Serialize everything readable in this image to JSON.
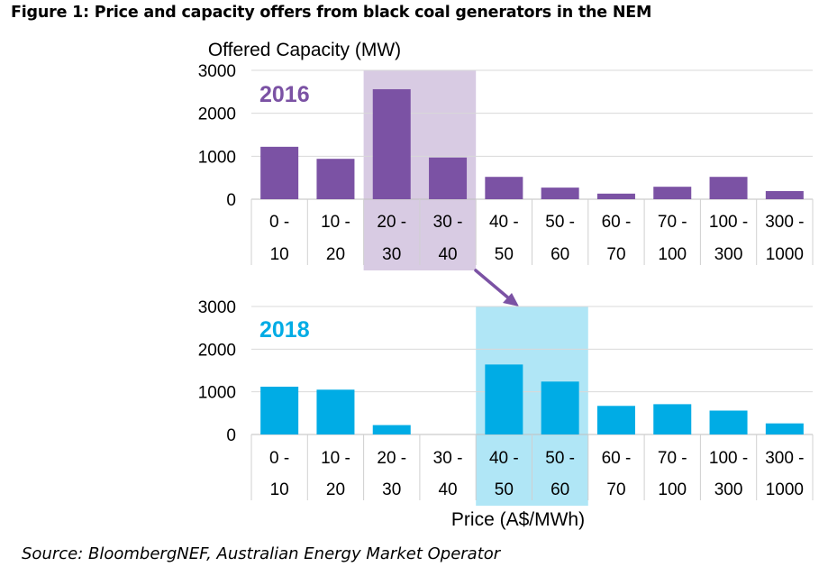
{
  "figure_title": "Figure 1: Price and capacity offers from black coal generators in the NEM",
  "source": "Source: BloombergNEF, Australian Energy Market Operator",
  "colors": {
    "series_2016": "#7B52A4",
    "highlight_2016": "#D8CBE3",
    "series_2018": "#00ACE5",
    "highlight_2018": "#B0E6F6",
    "arrow": "#7B52A4",
    "grid": "#D9D9D9"
  },
  "chart_data": [
    {
      "type": "bar",
      "series_label": "2016",
      "ylabel": "Offered Capacity (MW)",
      "xlabel": "",
      "ylim": [
        0,
        3000
      ],
      "yticks": [
        "0",
        "1000",
        "2000",
        "3000"
      ],
      "categories": [
        {
          "top": "0 -",
          "bottom": "10"
        },
        {
          "top": "10 -",
          "bottom": "20"
        },
        {
          "top": "20 -",
          "bottom": "30"
        },
        {
          "top": "30 -",
          "bottom": "40"
        },
        {
          "top": "40 -",
          "bottom": "50"
        },
        {
          "top": "50 -",
          "bottom": "60"
        },
        {
          "top": "60 -",
          "bottom": "70"
        },
        {
          "top": "70 -",
          "bottom": "100"
        },
        {
          "top": "100 -",
          "bottom": "300"
        },
        {
          "top": "300 -",
          "bottom": "1000"
        }
      ],
      "values": [
        1220,
        940,
        2560,
        970,
        520,
        270,
        130,
        290,
        520,
        190
      ],
      "highlighted_categories": [
        "20 - 30",
        "30 - 40"
      ]
    },
    {
      "type": "bar",
      "series_label": "2018",
      "ylabel": "",
      "xlabel": "Price (A$/MWh)",
      "ylim": [
        0,
        3000
      ],
      "yticks": [
        "0",
        "1000",
        "2000",
        "3000"
      ],
      "categories": [
        {
          "top": "0 -",
          "bottom": "10"
        },
        {
          "top": "10 -",
          "bottom": "20"
        },
        {
          "top": "20 -",
          "bottom": "30"
        },
        {
          "top": "30 -",
          "bottom": "40"
        },
        {
          "top": "40 -",
          "bottom": "50"
        },
        {
          "top": "50 -",
          "bottom": "60"
        },
        {
          "top": "60 -",
          "bottom": "70"
        },
        {
          "top": "70 -",
          "bottom": "100"
        },
        {
          "top": "100 -",
          "bottom": "300"
        },
        {
          "top": "300 -",
          "bottom": "1000"
        }
      ],
      "values": [
        1120,
        1050,
        220,
        0,
        1640,
        1240,
        670,
        710,
        560,
        260
      ],
      "highlighted_categories": [
        "40 - 50",
        "50 - 60"
      ]
    }
  ]
}
